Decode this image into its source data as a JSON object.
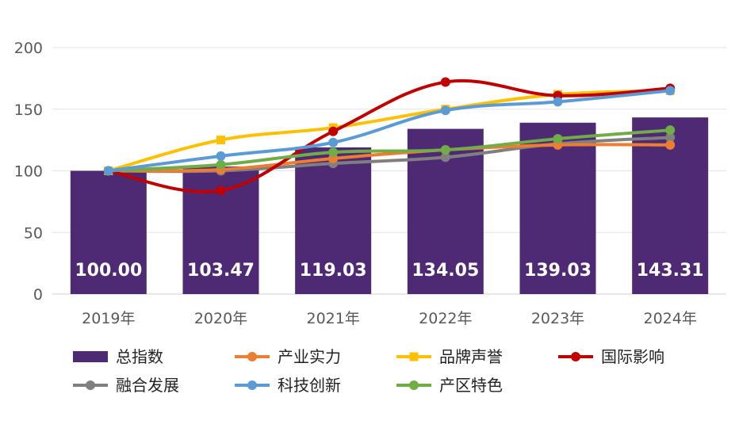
{
  "chart_data": {
    "type": "bar",
    "categories": [
      "2019年",
      "2020年",
      "2021年",
      "2022年",
      "2023年",
      "2024年"
    ],
    "ylim": [
      0,
      200
    ],
    "yticks": [
      0,
      50,
      100,
      150,
      200
    ],
    "grid": true,
    "legend_position": "bottom",
    "bar_series": {
      "name": "总指数",
      "color": "#4e2a75",
      "values": [
        100.0,
        103.47,
        119.03,
        134.05,
        139.03,
        143.31
      ],
      "labels": [
        "100.00",
        "103.47",
        "119.03",
        "134.05",
        "139.03",
        "143.31"
      ]
    },
    "line_series": [
      {
        "name": "产业实力",
        "color": "#ed7d31",
        "marker": "circle",
        "values": [
          100,
          101,
          110,
          117,
          121,
          121
        ]
      },
      {
        "name": "品牌声誉",
        "color": "#ffc000",
        "marker": "square",
        "values": [
          100,
          125,
          135,
          150,
          162,
          165
        ]
      },
      {
        "name": "国际影响",
        "color": "#c00000",
        "marker": "circle",
        "values": [
          100,
          84,
          132,
          172,
          161,
          167
        ]
      },
      {
        "name": "融合发展",
        "color": "#7f7f7f",
        "marker": "circle",
        "values": [
          100,
          100,
          106,
          111,
          122,
          127
        ]
      },
      {
        "name": "科技创新",
        "color": "#5b9bd5",
        "marker": "circle",
        "values": [
          100,
          112,
          123,
          149,
          156,
          165
        ]
      },
      {
        "name": "产区特色",
        "color": "#70ad47",
        "marker": "circle",
        "values": [
          100,
          105,
          115,
          117,
          126,
          133
        ]
      }
    ]
  }
}
